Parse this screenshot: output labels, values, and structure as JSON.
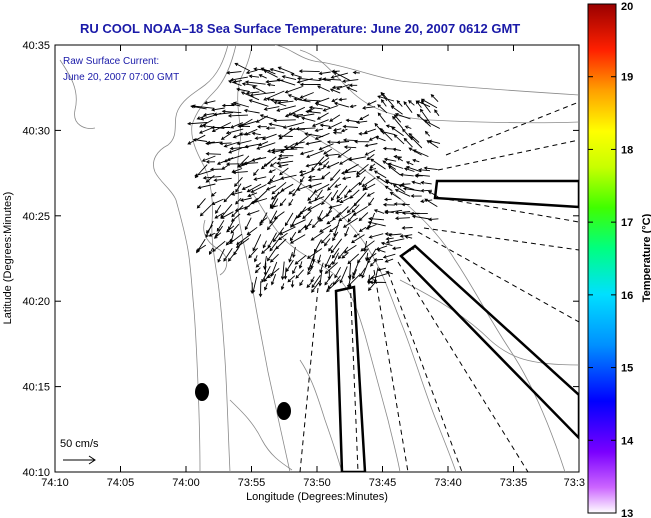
{
  "chart_data": {
    "type": "scatter",
    "title": "RU COOL  NOAA–18  Sea Surface Temperature:  June 20, 2007 0612 GMT",
    "annotation_lines": [
      "Raw Surface Current:",
      "June 20, 2007 07:00 GMT"
    ],
    "xlabel": "Longitude (Degrees:Minutes)",
    "ylabel": "Latitude (Degrees:Minutes)",
    "x_tick_labels": [
      "74:10",
      "74:05",
      "74:00",
      "73:55",
      "73:50",
      "73:45",
      "73:40",
      "73:35",
      "73:3"
    ],
    "y_tick_labels": [
      "40:10",
      "40:15",
      "40:20",
      "40:25",
      "40:30",
      "40:35"
    ],
    "xlim_minutes_west": [
      610,
      570
    ],
    "ylim_minutes_north": [
      2410,
      2435
    ],
    "scale_label": "50 cm/s",
    "colorbar": {
      "label": "Temperature (°C)",
      "min": 13,
      "max": 20,
      "tick_labels": [
        "13",
        "14",
        "15",
        "16",
        "17",
        "18",
        "19",
        "20"
      ]
    },
    "colors": {
      "title": "#1a1aa8",
      "vectors": "#000000",
      "coast_contours": "#888888"
    }
  }
}
